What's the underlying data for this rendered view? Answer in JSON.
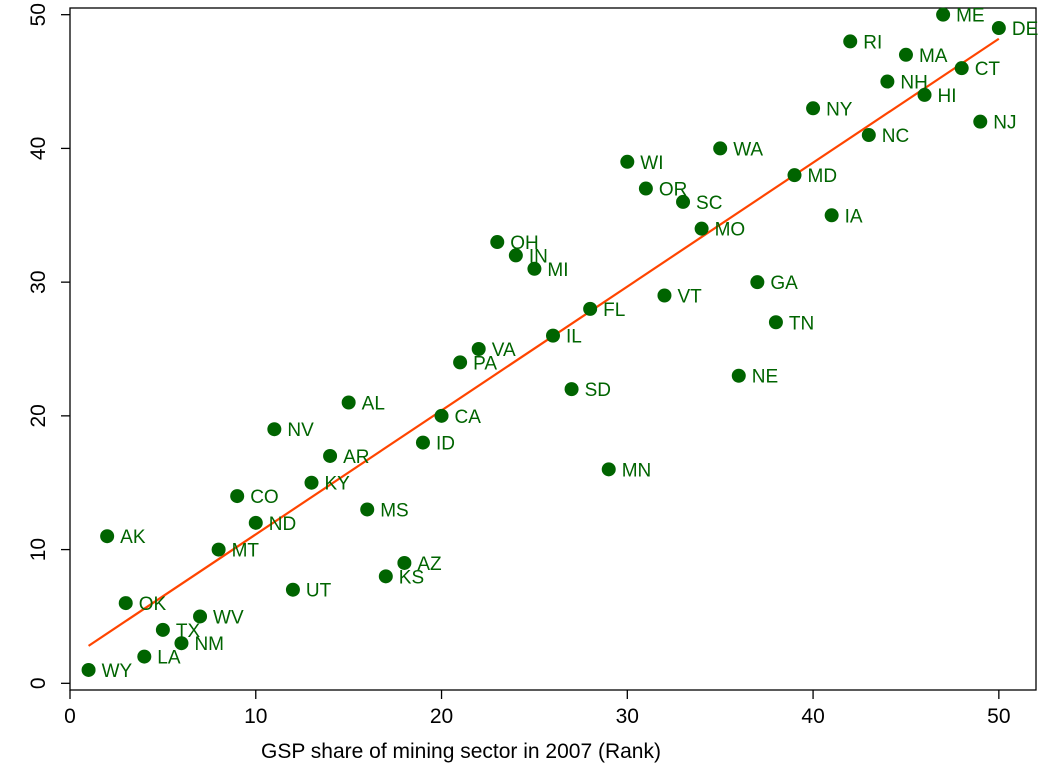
{
  "chart_data": {
    "type": "scatter",
    "xlabel": "GSP share of mining sector in 2007 (Rank)",
    "ylabel": "",
    "xlim": [
      0,
      52
    ],
    "ylim": [
      -0.5,
      50.5
    ],
    "x_ticks": [
      0,
      10,
      20,
      30,
      40,
      50
    ],
    "y_ticks": [
      0,
      10,
      20,
      30,
      40,
      50
    ],
    "grid": false,
    "marker_color": "#006400",
    "label_color": "#006400",
    "fit_line_color": "#ff4500",
    "fit_line": {
      "x": [
        1,
        50
      ],
      "y": [
        2.8,
        48.2
      ]
    },
    "points": [
      {
        "label": "WY",
        "x": 1,
        "y": 1
      },
      {
        "label": "AK",
        "x": 2,
        "y": 11
      },
      {
        "label": "OK",
        "x": 3,
        "y": 6
      },
      {
        "label": "LA",
        "x": 4,
        "y": 2
      },
      {
        "label": "TX",
        "x": 5,
        "y": 4
      },
      {
        "label": "NM",
        "x": 6,
        "y": 3
      },
      {
        "label": "WV",
        "x": 7,
        "y": 5
      },
      {
        "label": "MT",
        "x": 8,
        "y": 10
      },
      {
        "label": "CO",
        "x": 9,
        "y": 14
      },
      {
        "label": "ND",
        "x": 10,
        "y": 12
      },
      {
        "label": "NV",
        "x": 11,
        "y": 19
      },
      {
        "label": "UT",
        "x": 12,
        "y": 7
      },
      {
        "label": "KY",
        "x": 13,
        "y": 15
      },
      {
        "label": "AR",
        "x": 14,
        "y": 17
      },
      {
        "label": "AL",
        "x": 15,
        "y": 21
      },
      {
        "label": "MS",
        "x": 16,
        "y": 13
      },
      {
        "label": "KS",
        "x": 17,
        "y": 8
      },
      {
        "label": "AZ",
        "x": 18,
        "y": 9
      },
      {
        "label": "ID",
        "x": 19,
        "y": 18
      },
      {
        "label": "CA",
        "x": 20,
        "y": 20
      },
      {
        "label": "PA",
        "x": 21,
        "y": 24
      },
      {
        "label": "VA",
        "x": 22,
        "y": 25
      },
      {
        "label": "OH",
        "x": 23,
        "y": 33
      },
      {
        "label": "IN",
        "x": 24,
        "y": 32
      },
      {
        "label": "MI",
        "x": 25,
        "y": 31
      },
      {
        "label": "IL",
        "x": 26,
        "y": 26
      },
      {
        "label": "SD",
        "x": 27,
        "y": 22
      },
      {
        "label": "FL",
        "x": 28,
        "y": 28
      },
      {
        "label": "MN",
        "x": 29,
        "y": 16
      },
      {
        "label": "WI",
        "x": 30,
        "y": 39
      },
      {
        "label": "OR",
        "x": 31,
        "y": 37
      },
      {
        "label": "VT",
        "x": 32,
        "y": 29
      },
      {
        "label": "SC",
        "x": 33,
        "y": 36
      },
      {
        "label": "MO",
        "x": 34,
        "y": 34
      },
      {
        "label": "WA",
        "x": 35,
        "y": 40
      },
      {
        "label": "NE",
        "x": 36,
        "y": 23
      },
      {
        "label": "GA",
        "x": 37,
        "y": 30
      },
      {
        "label": "TN",
        "x": 38,
        "y": 27
      },
      {
        "label": "MD",
        "x": 39,
        "y": 38
      },
      {
        "label": "NY",
        "x": 40,
        "y": 43
      },
      {
        "label": "IA",
        "x": 41,
        "y": 35
      },
      {
        "label": "RI",
        "x": 42,
        "y": 48
      },
      {
        "label": "NC",
        "x": 43,
        "y": 41
      },
      {
        "label": "NH",
        "x": 44,
        "y": 45
      },
      {
        "label": "MA",
        "x": 45,
        "y": 47
      },
      {
        "label": "HI",
        "x": 46,
        "y": 44
      },
      {
        "label": "ME",
        "x": 47,
        "y": 50
      },
      {
        "label": "CT",
        "x": 48,
        "y": 46
      },
      {
        "label": "NJ",
        "x": 49,
        "y": 42
      },
      {
        "label": "DE",
        "x": 50,
        "y": 49
      }
    ]
  }
}
